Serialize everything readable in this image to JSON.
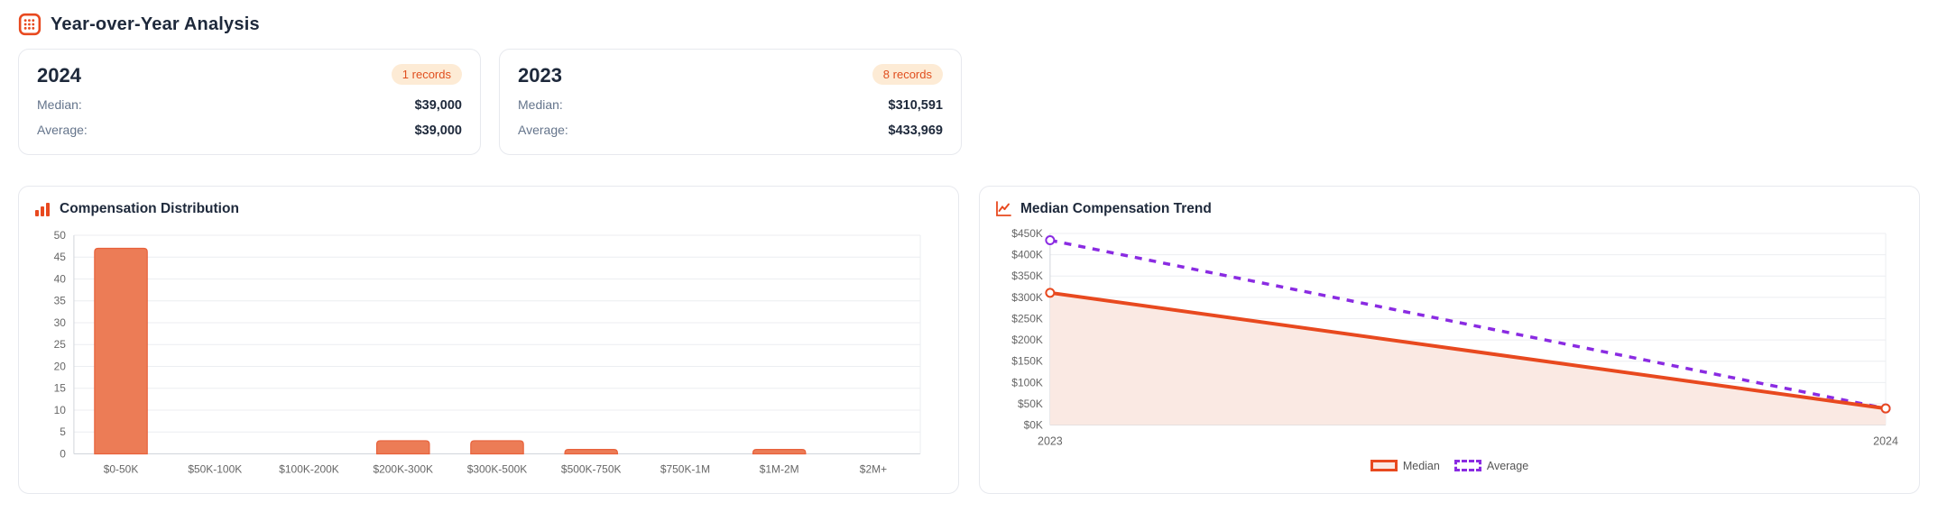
{
  "page": {
    "title": "Year-over-Year Analysis"
  },
  "year_cards": [
    {
      "year": "2024",
      "badge": "1 records",
      "median_label": "Median:",
      "median_value": "$39,000",
      "average_label": "Average:",
      "average_value": "$39,000"
    },
    {
      "year": "2023",
      "badge": "8 records",
      "median_label": "Median:",
      "median_value": "$310,591",
      "average_label": "Average:",
      "average_value": "$433,969"
    }
  ],
  "colors": {
    "accent": "#E8491F",
    "bar_fill": "#EC7C56",
    "bar_stroke": "#E8613B",
    "purple": "#8A2BE2",
    "area_fill": "#FAE9E3",
    "badge_bg": "#FDEBD5",
    "badge_text": "#E04F1F",
    "heading": "#1E293B",
    "muted": "#64748B",
    "axis_text": "#666666",
    "grid_line": "#ECEEF1",
    "axis_line": "#D1D5DB"
  },
  "chart_data": [
    {
      "type": "bar",
      "title": "Compensation Distribution",
      "categories": [
        "$0-50K",
        "$50K-100K",
        "$100K-200K",
        "$200K-300K",
        "$300K-500K",
        "$500K-750K",
        "$750K-1M",
        "$1M-2M",
        "$2M+"
      ],
      "values": [
        47,
        0,
        0,
        3,
        3,
        1,
        0,
        1,
        0
      ],
      "xlabel": "",
      "ylabel": "",
      "ylim": [
        0,
        50
      ],
      "ytick_step": 5,
      "grid": true,
      "bar_color": "#EC7C56"
    },
    {
      "type": "line",
      "title": "Median Compensation Trend",
      "x": [
        "2023",
        "2024"
      ],
      "series": [
        {
          "name": "Median",
          "values": [
            310591,
            39000
          ],
          "color": "#E8491F",
          "style": "solid",
          "area_fill": true
        },
        {
          "name": "Average",
          "values": [
            433969,
            39000
          ],
          "color": "#8A2BE2",
          "style": "dashed",
          "area_fill": false
        }
      ],
      "ylim": [
        0,
        450000
      ],
      "ytick_step": 50000,
      "ytick_format": "$K",
      "grid": true,
      "legend_position": "bottom"
    }
  ]
}
